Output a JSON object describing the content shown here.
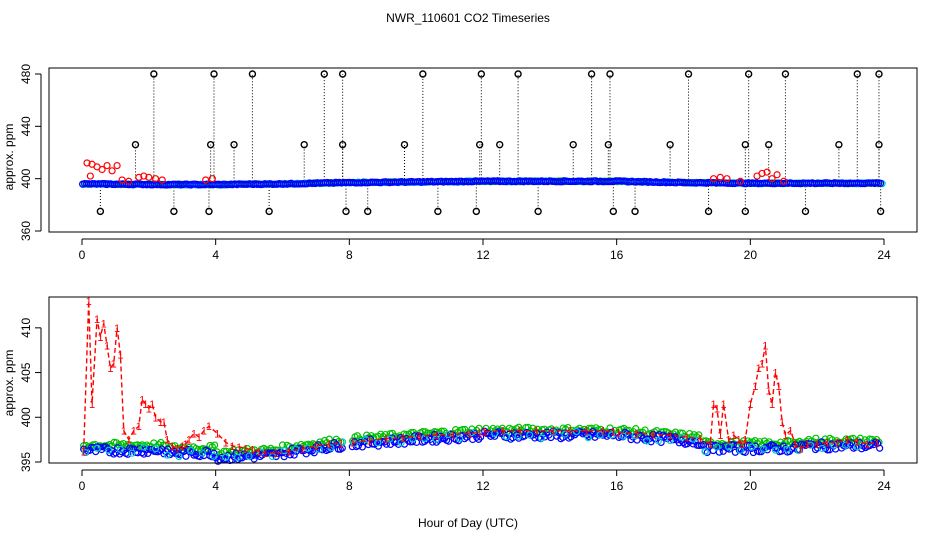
{
  "title": "NWR_110601  CO2 Timeseries",
  "xlabel": "Hour of Day (UTC)",
  "colors": {
    "frame": "#000000",
    "black": "#000000",
    "red": "#ff0000",
    "blue": "#0000ff",
    "cyan": "#00d0d0",
    "green": "#00c000"
  },
  "chart_data": [
    {
      "type": "scatter",
      "name": "top-panel",
      "ylabel": "approx. ppm",
      "xlim": [
        0,
        24
      ],
      "ylim": [
        360,
        480
      ],
      "x_ticks": [
        0,
        4,
        8,
        12,
        16,
        20,
        24
      ],
      "y_ticks": [
        360,
        400,
        440,
        480
      ],
      "spikes": {
        "hi": [
          2.15,
          3.95,
          5.1,
          7.25,
          7.8,
          10.2,
          11.95,
          13.05,
          15.25,
          15.8,
          18.15,
          19.95,
          21.05,
          23.2,
          23.85
        ],
        "mid": [
          1.6,
          3.85,
          4.55,
          6.65,
          7.8,
          9.65,
          11.9,
          12.5,
          14.7,
          15.75,
          17.6,
          19.85,
          20.55,
          22.65,
          23.85
        ],
        "low": [
          0.55,
          2.75,
          3.8,
          5.6,
          7.9,
          8.55,
          10.65,
          11.8,
          13.65,
          15.9,
          16.55,
          18.75,
          19.85,
          21.65,
          23.9
        ],
        "mid_value": 426,
        "low_value": 375,
        "top_value": 480
      },
      "red_points": [
        {
          "x": 0.15,
          "y": 412
        },
        {
          "x": 0.3,
          "y": 411
        },
        {
          "x": 0.45,
          "y": 409
        },
        {
          "x": 0.6,
          "y": 407
        },
        {
          "x": 0.75,
          "y": 410
        },
        {
          "x": 0.9,
          "y": 406
        },
        {
          "x": 1.05,
          "y": 410
        },
        {
          "x": 0.25,
          "y": 402
        },
        {
          "x": 1.2,
          "y": 399
        },
        {
          "x": 1.4,
          "y": 398
        },
        {
          "x": 1.7,
          "y": 401
        },
        {
          "x": 1.85,
          "y": 402
        },
        {
          "x": 2.0,
          "y": 401
        },
        {
          "x": 2.2,
          "y": 400
        },
        {
          "x": 2.4,
          "y": 399
        },
        {
          "x": 3.7,
          "y": 399
        },
        {
          "x": 3.9,
          "y": 400
        },
        {
          "x": 18.9,
          "y": 400
        },
        {
          "x": 19.1,
          "y": 401
        },
        {
          "x": 19.3,
          "y": 400
        },
        {
          "x": 19.7,
          "y": 398
        },
        {
          "x": 20.2,
          "y": 402
        },
        {
          "x": 20.35,
          "y": 404
        },
        {
          "x": 20.5,
          "y": 405
        },
        {
          "x": 20.65,
          "y": 400
        },
        {
          "x": 20.8,
          "y": 403
        },
        {
          "x": 21.0,
          "y": 398
        }
      ],
      "baseline": [
        {
          "x": 0.0,
          "y": 396
        },
        {
          "x": 2.5,
          "y": 395.5
        },
        {
          "x": 4.0,
          "y": 395.5
        },
        {
          "x": 6.0,
          "y": 396
        },
        {
          "x": 8.0,
          "y": 397
        },
        {
          "x": 12.0,
          "y": 398
        },
        {
          "x": 16.0,
          "y": 398
        },
        {
          "x": 18.0,
          "y": 397
        },
        {
          "x": 20.0,
          "y": 396.5
        },
        {
          "x": 24.0,
          "y": 396.5
        }
      ]
    },
    {
      "type": "line",
      "name": "bottom-panel",
      "ylabel": "approx. ppm",
      "xlim": [
        0,
        24
      ],
      "ylim": [
        395,
        413
      ],
      "x_ticks": [
        0,
        4,
        8,
        12,
        16,
        20,
        24
      ],
      "y_ticks": [
        395,
        400,
        405,
        410
      ],
      "point_label": "1",
      "series": [
        {
          "name": "red-1",
          "color": "red",
          "points": [
            [
              0.05,
              396.2
            ],
            [
              0.2,
              413.0
            ],
            [
              0.3,
              401.5
            ],
            [
              0.45,
              411.0
            ],
            [
              0.55,
              409.0
            ],
            [
              0.65,
              410.5
            ],
            [
              0.75,
              408.0
            ],
            [
              0.85,
              405.5
            ],
            [
              0.95,
              406.0
            ],
            [
              1.05,
              410.0
            ],
            [
              1.15,
              407.0
            ],
            [
              1.25,
              398.5
            ],
            [
              1.4,
              397.5
            ],
            [
              1.55,
              398.5
            ],
            [
              1.7,
              399.0
            ],
            [
              1.8,
              402.0
            ],
            [
              1.9,
              401.5
            ],
            [
              2.0,
              401.0
            ],
            [
              2.1,
              401.5
            ],
            [
              2.2,
              400.0
            ],
            [
              2.35,
              399.5
            ],
            [
              2.45,
              399.5
            ],
            [
              2.55,
              397.5
            ],
            [
              2.7,
              396.8
            ],
            [
              2.85,
              396.5
            ],
            [
              3.0,
              396.8
            ],
            [
              3.1,
              397.0
            ],
            [
              3.2,
              397.5
            ],
            [
              3.35,
              398.2
            ],
            [
              3.5,
              397.8
            ],
            [
              3.65,
              398.5
            ],
            [
              3.8,
              399.0
            ],
            [
              4.05,
              398.2
            ],
            [
              4.3,
              397.2
            ],
            [
              4.5,
              396.8
            ],
            [
              4.7,
              396.7
            ],
            [
              4.9,
              396.5
            ],
            [
              5.1,
              396.4
            ],
            [
              5.3,
              396.2
            ],
            [
              5.5,
              396.0
            ],
            [
              5.8,
              396.0
            ],
            [
              6.2,
              396.2
            ],
            [
              6.6,
              396.5
            ],
            [
              7.0,
              396.8
            ],
            [
              7.4,
              397.0
            ],
            [
              7.75,
              397.1
            ]
          ]
        },
        {
          "name": "red-2",
          "color": "red",
          "points": [
            [
              8.1,
              397.2
            ],
            [
              8.6,
              397.4
            ],
            [
              9.1,
              397.6
            ],
            [
              9.6,
              397.7
            ],
            [
              10.1,
              397.9
            ],
            [
              10.6,
              398.0
            ],
            [
              11.1,
              398.1
            ],
            [
              11.6,
              398.2
            ],
            [
              11.9,
              398.3
            ]
          ]
        },
        {
          "name": "red-3",
          "color": "red",
          "points": [
            [
              12.05,
              398.4
            ],
            [
              12.6,
              398.5
            ],
            [
              13.1,
              398.5
            ],
            [
              13.6,
              398.5
            ],
            [
              14.1,
              398.5
            ],
            [
              14.6,
              398.5
            ],
            [
              15.1,
              398.5
            ],
            [
              15.6,
              398.5
            ],
            [
              15.9,
              398.4
            ]
          ]
        },
        {
          "name": "red-4",
          "color": "red",
          "points": [
            [
              16.05,
              398.3
            ],
            [
              16.6,
              398.2
            ],
            [
              17.1,
              398.1
            ],
            [
              17.6,
              398.0
            ],
            [
              18.1,
              397.8
            ],
            [
              18.5,
              397.6
            ],
            [
              18.8,
              397.0
            ],
            [
              18.9,
              401.5
            ],
            [
              19.0,
              401.0
            ],
            [
              19.1,
              398.0
            ],
            [
              19.2,
              401.5
            ],
            [
              19.35,
              397.5
            ],
            [
              19.5,
              398.0
            ],
            [
              19.65,
              397.5
            ],
            [
              19.75,
              397.0
            ],
            [
              19.85,
              397.5
            ],
            [
              20.0,
              401.5
            ],
            [
              20.15,
              403.5
            ],
            [
              20.25,
              405.5
            ],
            [
              20.35,
              406.0
            ],
            [
              20.45,
              408.0
            ],
            [
              20.55,
              403.0
            ],
            [
              20.65,
              401.5
            ],
            [
              20.75,
              405.0
            ],
            [
              20.85,
              403.5
            ],
            [
              20.95,
              399.5
            ],
            [
              21.05,
              398.0
            ],
            [
              21.2,
              398.5
            ],
            [
              21.35,
              397.0
            ],
            [
              21.5,
              396.5
            ],
            [
              21.7,
              397.0
            ],
            [
              22.0,
              397.0
            ],
            [
              22.3,
              397.2
            ],
            [
              22.6,
              397.2
            ],
            [
              22.9,
              397.5
            ],
            [
              23.2,
              397.3
            ],
            [
              23.5,
              397.0
            ],
            [
              23.8,
              397.2
            ]
          ]
        }
      ],
      "gaps": [
        [
          7.8,
          8.05
        ],
        [
          11.95,
          12.05
        ],
        [
          15.95,
          16.05
        ]
      ]
    }
  ]
}
